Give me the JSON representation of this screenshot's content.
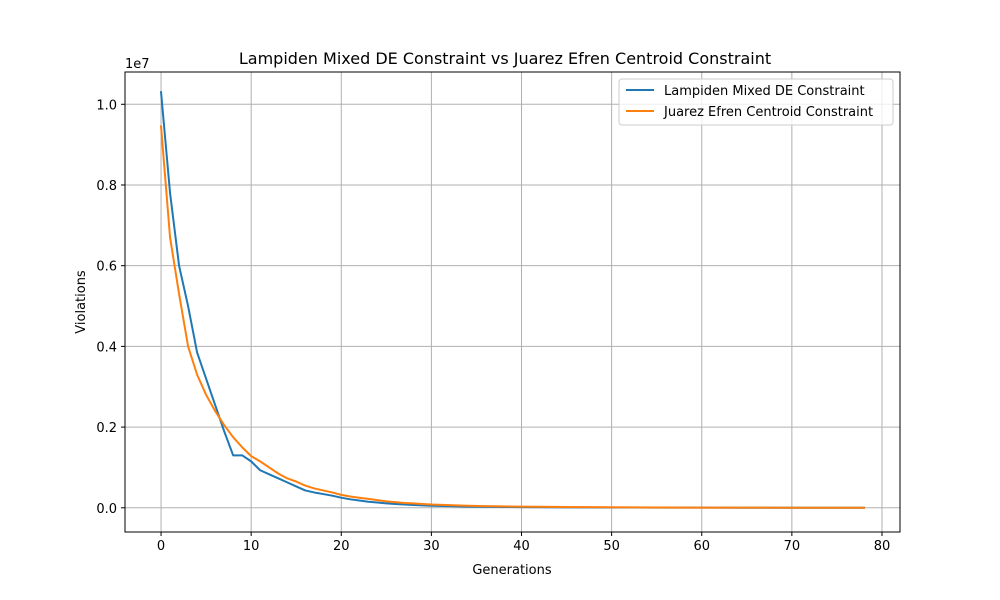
{
  "chart_data": {
    "type": "line",
    "title": "Lampiden Mixed DE Constraint vs Juarez Efren Centroid Constraint",
    "xlabel": "Generations",
    "ylabel": "Violations",
    "y_scale_label": "1e7",
    "xlim": [
      -4,
      82
    ],
    "ylim": [
      -0.06,
      1.08
    ],
    "xticks": [
      0,
      10,
      20,
      30,
      40,
      50,
      60,
      70,
      80
    ],
    "xtick_labels": [
      "0",
      "10",
      "20",
      "30",
      "40",
      "50",
      "60",
      "70",
      "80"
    ],
    "yticks": [
      0.0,
      0.2,
      0.4,
      0.6,
      0.8,
      1.0
    ],
    "ytick_labels": [
      "0.0",
      "0.2",
      "0.4",
      "0.6",
      "0.8",
      "1.0"
    ],
    "grid": true,
    "legend_position": "top-right",
    "series": [
      {
        "name": "Lampiden Mixed DE Constraint",
        "color": "#1f77b4",
        "x": [
          0,
          1,
          2,
          3,
          4,
          5,
          6,
          7,
          8,
          9,
          10,
          11,
          12,
          13,
          14,
          15,
          16,
          17,
          18,
          19,
          20,
          21,
          22,
          23,
          24,
          25,
          26,
          27,
          28,
          29,
          30,
          32,
          34,
          36,
          38,
          40,
          45,
          50,
          55,
          60,
          65,
          70,
          75,
          78
        ],
        "y": [
          1.03,
          0.78,
          0.6,
          0.5,
          0.385,
          0.32,
          0.255,
          0.19,
          0.13,
          0.13,
          0.115,
          0.093,
          0.083,
          0.073,
          0.063,
          0.053,
          0.043,
          0.038,
          0.034,
          0.03,
          0.025,
          0.021,
          0.018,
          0.015,
          0.013,
          0.011,
          0.0095,
          0.008,
          0.007,
          0.006,
          0.005,
          0.004,
          0.003,
          0.0025,
          0.002,
          0.0016,
          0.001,
          0.0007,
          0.0005,
          0.0003,
          0.0002,
          0.0001,
          5e-05,
          3e-05
        ]
      },
      {
        "name": "Juarez Efren Centroid Constraint",
        "color": "#ff7f0e",
        "x": [
          0,
          1,
          2,
          3,
          4,
          5,
          6,
          7,
          8,
          9,
          10,
          11,
          12,
          13,
          14,
          15,
          16,
          17,
          18,
          19,
          20,
          21,
          22,
          23,
          24,
          25,
          26,
          27,
          28,
          29,
          30,
          32,
          34,
          36,
          38,
          40,
          45,
          50,
          55,
          60,
          65,
          70,
          75,
          78
        ],
        "y": [
          0.945,
          0.67,
          0.53,
          0.4,
          0.33,
          0.28,
          0.24,
          0.205,
          0.175,
          0.15,
          0.128,
          0.115,
          0.1,
          0.085,
          0.073,
          0.065,
          0.055,
          0.048,
          0.043,
          0.038,
          0.032,
          0.028,
          0.025,
          0.022,
          0.019,
          0.016,
          0.014,
          0.012,
          0.011,
          0.0095,
          0.008,
          0.0065,
          0.0052,
          0.0042,
          0.0035,
          0.0028,
          0.0018,
          0.0012,
          0.0008,
          0.0005,
          0.0003,
          0.0002,
          0.0001,
          5e-05
        ]
      }
    ]
  }
}
